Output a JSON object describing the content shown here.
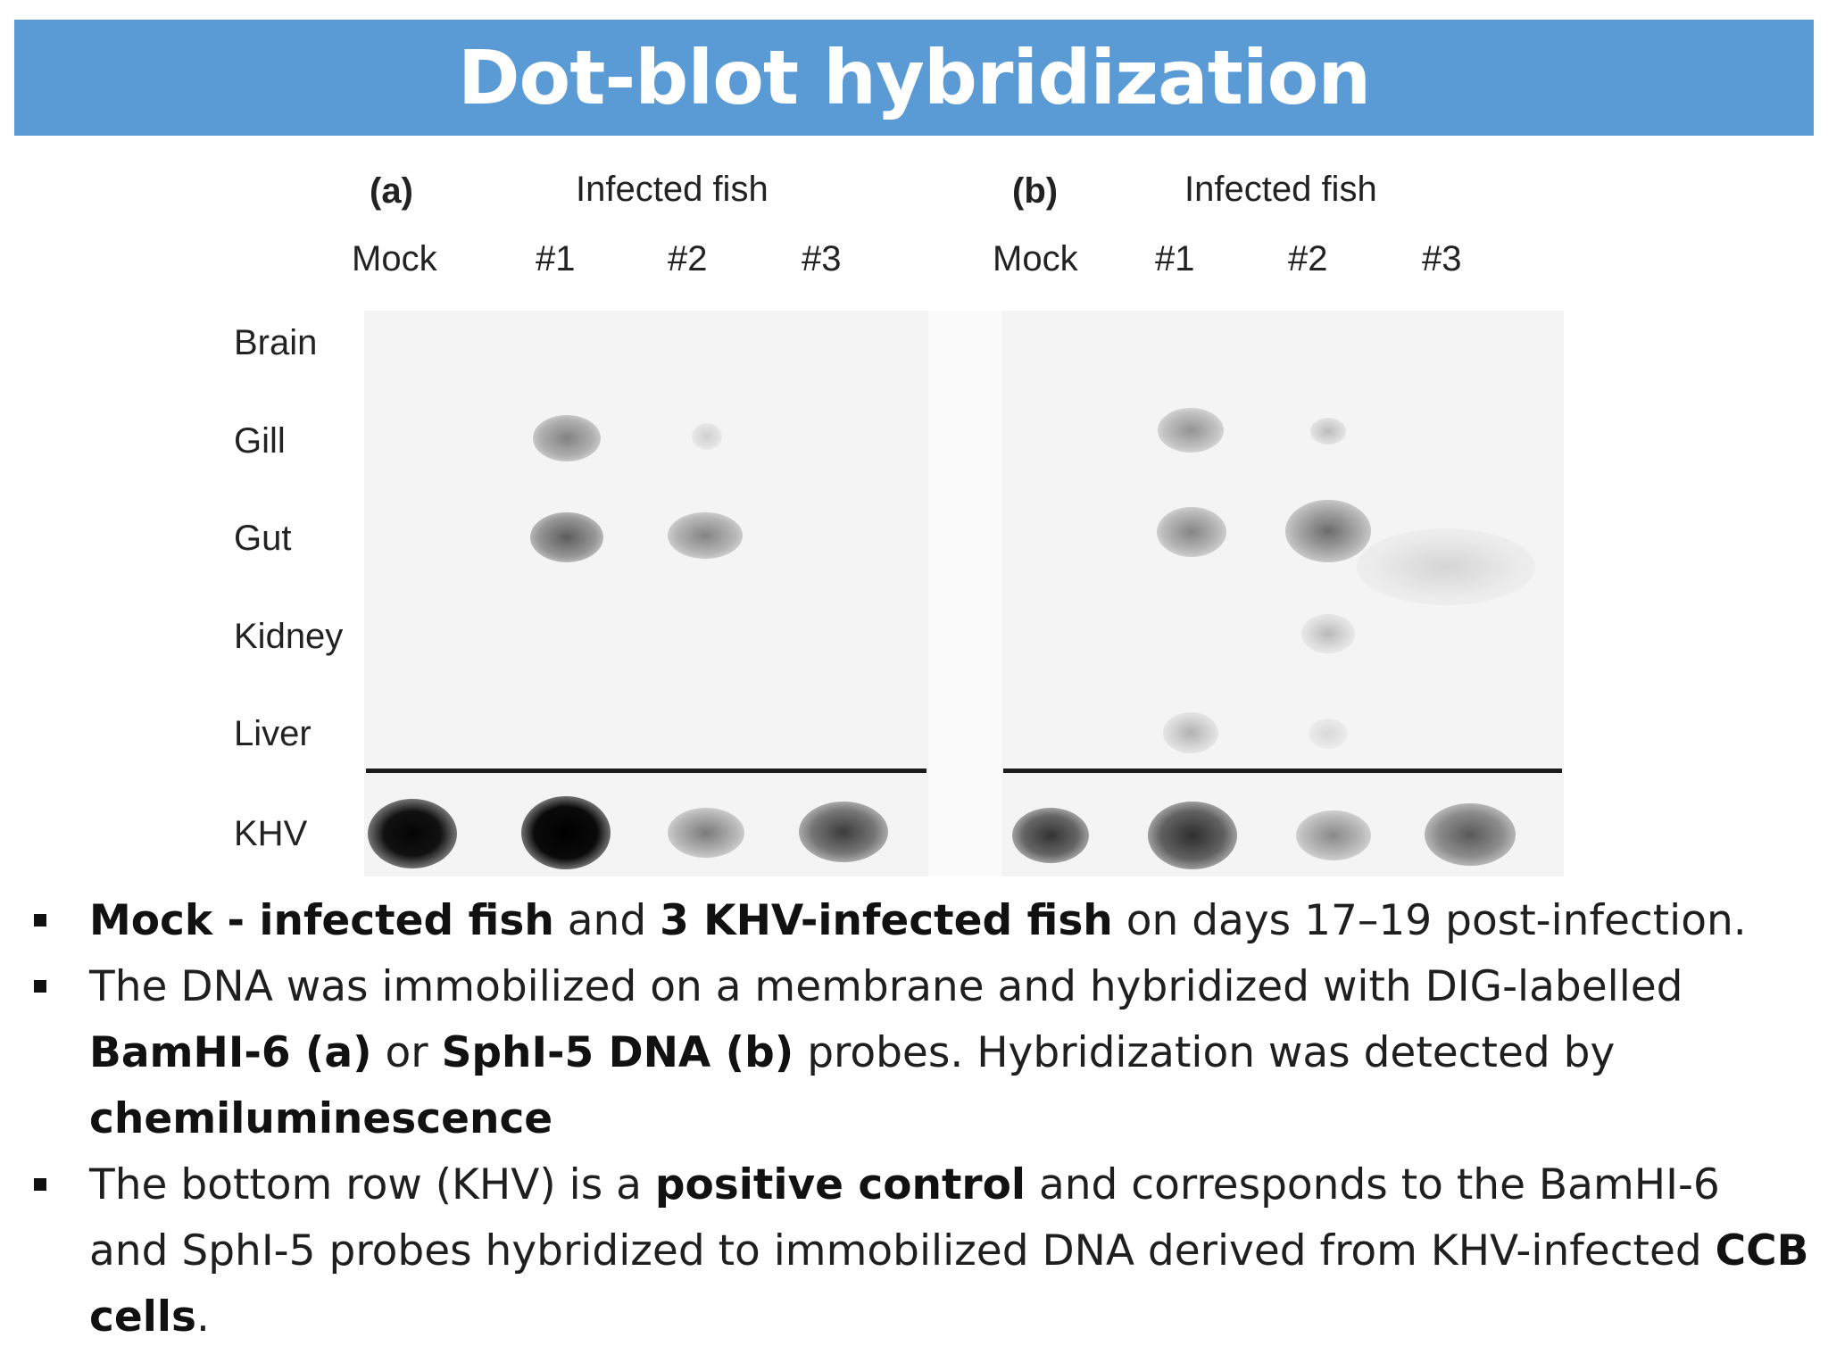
{
  "header": {
    "title": "Dot-blot hybridization"
  },
  "figure": {
    "panels": [
      {
        "label": "(a)",
        "group_label": "Infected fish",
        "columns": [
          "Mock",
          "#1",
          "#2",
          "#3"
        ]
      },
      {
        "label": "(b)",
        "group_label": "Infected fish",
        "columns": [
          "Mock",
          "#1",
          "#2",
          "#3"
        ]
      }
    ],
    "rows": [
      "Brain",
      "Gill",
      "Gut",
      "Kidney",
      "Liver",
      "KHV"
    ]
  },
  "bullets": [
    {
      "segments": [
        {
          "text": "Mock - infected fish",
          "bold": true
        },
        {
          "text": " and ",
          "bold": false
        },
        {
          "text": "3 KHV-infected fish",
          "bold": true
        },
        {
          "text": " on days 17–19 post-infection.",
          "bold": false
        }
      ]
    },
    {
      "segments": [
        {
          "text": "The DNA was immobilized on a membrane and hybridized with DIG-labelled ",
          "bold": false
        },
        {
          "text": "BamHI-6 (a)",
          "bold": true
        },
        {
          "text": " or ",
          "bold": false
        },
        {
          "text": "SphI-5 DNA (b)",
          "bold": true
        },
        {
          "text": " probes. Hybridization was detected by ",
          "bold": false
        },
        {
          "text": "chemiluminescence",
          "bold": true
        }
      ]
    },
    {
      "segments": [
        {
          "text": "The bottom row (KHV) is a ",
          "bold": false
        },
        {
          "text": "positive control",
          "bold": true
        },
        {
          "text": " and corresponds to the BamHI-6 and SphI-5 probes hybridized to immobilized DNA derived from KHV-infected ",
          "bold": false
        },
        {
          "text": "CCB cells",
          "bold": true
        },
        {
          "text": ".",
          "bold": false
        }
      ]
    }
  ]
}
